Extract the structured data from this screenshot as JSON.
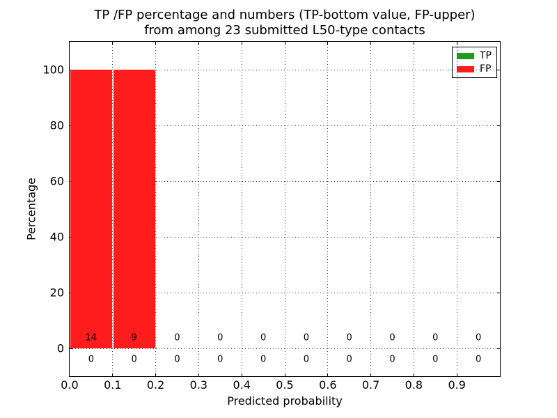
{
  "figure": {
    "title_line1": "TP /FP percentage and numbers (TP-bottom value, FP-upper)",
    "title_line2": "from among 23 submitted L50-type contacts",
    "xlabel": "Predicted probability",
    "ylabel": "Percentage"
  },
  "legend": {
    "items": [
      {
        "label": "TP",
        "color": "#1f9b1f"
      },
      {
        "label": "FP",
        "color": "#ff1c1c"
      }
    ]
  },
  "chart_data": {
    "type": "bar",
    "stacked": true,
    "title": "TP /FP percentage and numbers (TP-bottom value, FP-upper) from among 23 submitted L50-type contacts",
    "xlabel": "Predicted probability",
    "ylabel": "Percentage",
    "total_submitted_contacts": 23,
    "xlim": [
      0.0,
      1.0
    ],
    "ylim": [
      -10,
      110
    ],
    "grid": "dotted",
    "legend_position": "upper-right",
    "bin_edges": [
      0.0,
      0.1,
      0.2,
      0.3,
      0.4,
      0.5,
      0.6,
      0.7,
      0.8,
      0.9,
      1.0
    ],
    "x_tick_labels": [
      "0.0",
      "0.1",
      "0.2",
      "0.3",
      "0.4",
      "0.5",
      "0.6",
      "0.7",
      "0.8",
      "0.9"
    ],
    "y_tick_labels": [
      "0",
      "20",
      "40",
      "60",
      "80",
      "100"
    ],
    "series": [
      {
        "name": "TP",
        "color": "#1f9b1f",
        "percentages": [
          0,
          0,
          0,
          0,
          0,
          0,
          0,
          0,
          0,
          0
        ],
        "counts": [
          0,
          0,
          0,
          0,
          0,
          0,
          0,
          0,
          0,
          0
        ],
        "count_row": "below-zero-line"
      },
      {
        "name": "FP",
        "color": "#ff1c1c",
        "percentages": [
          100,
          100,
          0,
          0,
          0,
          0,
          0,
          0,
          0,
          0
        ],
        "counts": [
          14,
          9,
          0,
          0,
          0,
          0,
          0,
          0,
          0,
          0
        ],
        "count_row": "above-zero-line"
      }
    ]
  }
}
